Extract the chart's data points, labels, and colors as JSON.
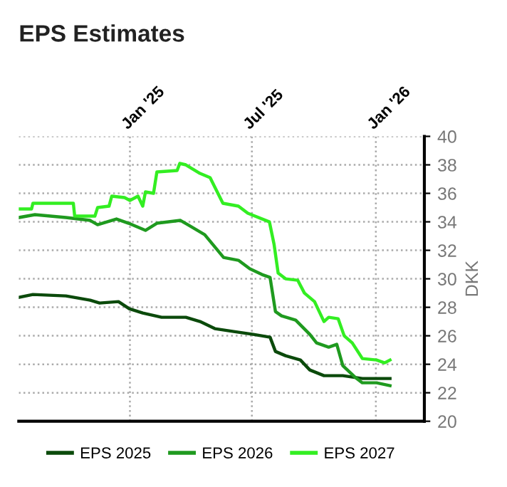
{
  "chart_data": {
    "type": "line",
    "title": "EPS Estimates",
    "ylabel": "DKK",
    "xlim": [
      "2024-07-20",
      "2026-03-14"
    ],
    "xticks": [
      {
        "value": "2025-01-01",
        "label": "Jan '25"
      },
      {
        "value": "2025-07-01",
        "label": "Jul '25"
      },
      {
        "value": "2026-01-01",
        "label": "Jan '26"
      }
    ],
    "ylim": [
      20,
      40
    ],
    "yticks": [
      20,
      22,
      24,
      26,
      28,
      30,
      32,
      34,
      36,
      38,
      40
    ],
    "grid": true,
    "legend": "bottom",
    "marker": "none",
    "line_style": "solid",
    "series": [
      {
        "name": "EPS 2025",
        "color": "#0b4a0b",
        "x": [
          "2024-07-20",
          "2024-08-10",
          "2024-09-28",
          "2024-11-03",
          "2024-11-17",
          "2024-12-15",
          "2024-12-31",
          "2025-01-20",
          "2025-02-17",
          "2025-03-25",
          "2025-04-15",
          "2025-05-07",
          "2025-06-04",
          "2025-07-03",
          "2025-07-28",
          "2025-08-05",
          "2025-08-20",
          "2025-09-11",
          "2025-09-25",
          "2025-10-16",
          "2025-11-13",
          "2025-12-12",
          "2026-01-22"
        ],
        "values": [
          28.7,
          28.9,
          28.8,
          28.5,
          28.3,
          28.4,
          27.9,
          27.6,
          27.3,
          27.3,
          27.0,
          26.5,
          26.3,
          26.1,
          25.9,
          24.9,
          24.6,
          24.3,
          23.6,
          23.2,
          23.2,
          23.0,
          23.0
        ]
      },
      {
        "name": "EPS 2026",
        "color": "#1f9a1f",
        "x": [
          "2024-07-20",
          "2024-08-13",
          "2024-09-28",
          "2024-11-03",
          "2024-11-14",
          "2024-12-12",
          "2024-12-30",
          "2025-01-24",
          "2025-02-10",
          "2025-03-17",
          "2025-03-28",
          "2025-04-22",
          "2025-05-20",
          "2025-06-11",
          "2025-06-28",
          "2025-07-16",
          "2025-07-28",
          "2025-08-05",
          "2025-08-14",
          "2025-09-04",
          "2025-09-25",
          "2025-10-05",
          "2025-10-23",
          "2025-11-04",
          "2025-11-13",
          "2025-12-01",
          "2025-12-12",
          "2026-01-02",
          "2026-01-22"
        ],
        "values": [
          34.3,
          34.5,
          34.3,
          34.1,
          33.8,
          34.2,
          33.9,
          33.4,
          33.9,
          34.1,
          33.8,
          33.1,
          31.5,
          31.3,
          30.7,
          30.3,
          30.1,
          27.7,
          27.4,
          27.1,
          26.1,
          25.5,
          25.2,
          25.4,
          23.9,
          23.1,
          22.7,
          22.7,
          22.5
        ]
      },
      {
        "name": "EPS 2027",
        "color": "#33ee22",
        "x": [
          "2024-07-20",
          "2024-08-08",
          "2024-08-10",
          "2024-10-09",
          "2024-10-11",
          "2024-11-10",
          "2024-11-14",
          "2024-12-01",
          "2024-12-05",
          "2024-12-24",
          "2025-01-01",
          "2025-01-13",
          "2025-01-20",
          "2025-01-24",
          "2025-02-05",
          "2025-02-10",
          "2025-03-12",
          "2025-03-16",
          "2025-03-25",
          "2025-04-15",
          "2025-04-30",
          "2025-05-19",
          "2025-06-11",
          "2025-06-25",
          "2025-07-27",
          "2025-08-03",
          "2025-08-09",
          "2025-08-20",
          "2025-09-07",
          "2025-09-17",
          "2025-10-02",
          "2025-10-16",
          "2025-10-23",
          "2025-11-06",
          "2025-11-15",
          "2025-11-27",
          "2025-12-12",
          "2026-01-02",
          "2026-01-14",
          "2026-01-22"
        ],
        "values": [
          34.9,
          34.9,
          35.3,
          35.3,
          34.4,
          34.4,
          35.0,
          35.1,
          35.8,
          35.7,
          35.5,
          35.8,
          35.1,
          36.1,
          36.0,
          37.5,
          37.6,
          38.1,
          38.0,
          37.4,
          37.1,
          35.3,
          35.1,
          34.6,
          34.0,
          32.4,
          30.4,
          30.0,
          29.9,
          29.0,
          28.4,
          27.0,
          27.3,
          27.2,
          26.0,
          25.5,
          24.4,
          24.3,
          24.1,
          24.3
        ]
      }
    ]
  }
}
